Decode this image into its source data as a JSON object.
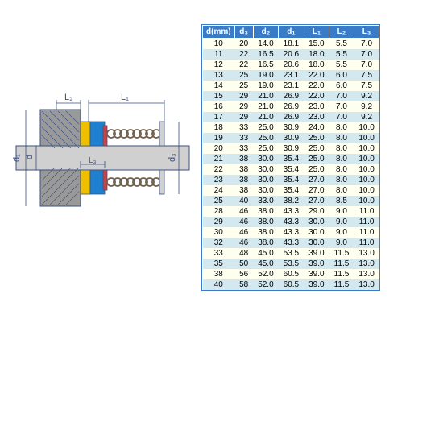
{
  "table": {
    "headers": [
      "d(mm)",
      "d₃",
      "d₂",
      "d₁",
      "L₁",
      "L₂",
      "L₃"
    ],
    "header_bg": "#3a7bc8",
    "header_color": "#ffffff",
    "row_even_bg": "#fffff0",
    "row_odd_bg": "#d4e8f0",
    "rows": [
      [
        "10",
        "20",
        "14.0",
        "18.1",
        "15.0",
        "5.5",
        "7.0"
      ],
      [
        "11",
        "22",
        "16.5",
        "20.6",
        "18.0",
        "5.5",
        "7.0"
      ],
      [
        "12",
        "22",
        "16.5",
        "20.6",
        "18.0",
        "5.5",
        "7.0"
      ],
      [
        "13",
        "25",
        "19.0",
        "23.1",
        "22.0",
        "6.0",
        "7.5"
      ],
      [
        "14",
        "25",
        "19.0",
        "23.1",
        "22.0",
        "6.0",
        "7.5"
      ],
      [
        "15",
        "29",
        "21.0",
        "26.9",
        "22.0",
        "7.0",
        "9.2"
      ],
      [
        "16",
        "29",
        "21.0",
        "26.9",
        "23.0",
        "7.0",
        "9.2"
      ],
      [
        "17",
        "29",
        "21.0",
        "26.9",
        "23.0",
        "7.0",
        "9.2"
      ],
      [
        "18",
        "33",
        "25.0",
        "30.9",
        "24.0",
        "8.0",
        "10.0"
      ],
      [
        "19",
        "33",
        "25.0",
        "30.9",
        "25.0",
        "8.0",
        "10.0"
      ],
      [
        "20",
        "33",
        "25.0",
        "30.9",
        "25.0",
        "8.0",
        "10.0"
      ],
      [
        "21",
        "38",
        "30.0",
        "35.4",
        "25.0",
        "8.0",
        "10.0"
      ],
      [
        "22",
        "38",
        "30.0",
        "35.4",
        "25.0",
        "8.0",
        "10.0"
      ],
      [
        "23",
        "38",
        "30.0",
        "35.4",
        "27.0",
        "8.0",
        "10.0"
      ],
      [
        "24",
        "38",
        "30.0",
        "35.4",
        "27.0",
        "8.0",
        "10.0"
      ],
      [
        "25",
        "40",
        "33.0",
        "38.2",
        "27.0",
        "8.5",
        "10.0"
      ],
      [
        "28",
        "46",
        "38.0",
        "43.3",
        "29.0",
        "9.0",
        "11.0"
      ],
      [
        "29",
        "46",
        "38.0",
        "43.3",
        "30.0",
        "9.0",
        "11.0"
      ],
      [
        "30",
        "46",
        "38.0",
        "43.3",
        "30.0",
        "9.0",
        "11.0"
      ],
      [
        "32",
        "46",
        "38.0",
        "43.3",
        "30.0",
        "9.0",
        "11.0"
      ],
      [
        "33",
        "48",
        "45.0",
        "53.5",
        "39.0",
        "11.5",
        "13.0"
      ],
      [
        "35",
        "50",
        "45.0",
        "53.5",
        "39.0",
        "11.5",
        "13.0"
      ],
      [
        "38",
        "56",
        "52.0",
        "60.5",
        "39.0",
        "11.5",
        "13.0"
      ],
      [
        "40",
        "58",
        "52.0",
        "60.5",
        "39.0",
        "11.5",
        "13.0"
      ]
    ]
  },
  "diagram": {
    "labels": {
      "L1": "L₁",
      "L2": "L₂",
      "L3": "L₃",
      "d": "d",
      "d1": "d₁",
      "d3": "d₃"
    },
    "colors": {
      "shaft": "#d0d0d0",
      "housing": "#999999",
      "seal_blue": "#2080d0",
      "seal_yellow": "#f0c000",
      "seal_red": "#d04040",
      "spring": "#706050",
      "line": "#3a5080",
      "bg": "#ffffff"
    }
  }
}
